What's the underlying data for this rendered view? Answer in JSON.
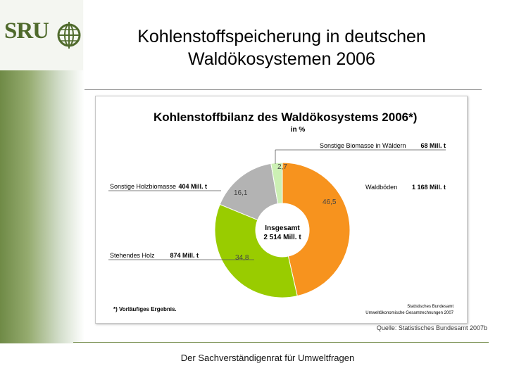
{
  "logo": {
    "text": "SRU"
  },
  "slide": {
    "title_line1": "Kohlenstoffspeicherung in deutschen",
    "title_line2": "Waldökosystemen 2006",
    "source": "Quelle: Statistisches Bundesamt 2007b",
    "footer": "Der Sachverständigenrat für Umweltfragen"
  },
  "colors": {
    "orange": "#f7931e",
    "green": "#99cc00",
    "gray": "#b3b3b3",
    "light_green": "#ccf0b4"
  },
  "chart_data": {
    "type": "pie",
    "title": "Kohlenstoffbilanz des Waldökosystems 2006*)",
    "subtitle": "in %",
    "center_label_line1": "Insgesamt",
    "center_label_line2": "2 514 Mill. t",
    "footnote": "*) Vorläufiges Ergebnis.",
    "credit_line1": "Statistisches Bundesamt",
    "credit_line2": "Umweltökonomische Gesamtrechnungen 2007",
    "slices": [
      {
        "label": "Waldböden",
        "amount": "1 168 Mill. t",
        "value": 46.5,
        "value_label": "46,5",
        "color": "#f7931e"
      },
      {
        "label": "Stehendes Holz",
        "amount": "874 Mill. t",
        "value": 34.8,
        "value_label": "34,8",
        "color": "#99cc00"
      },
      {
        "label": "Sonstige Holzbiomasse",
        "amount": "404 Mill. t",
        "value": 16.1,
        "value_label": "16,1",
        "color": "#b3b3b3"
      },
      {
        "label": "Sonstige Biomasse in Wäldern",
        "amount": "68 Mill. t",
        "value": 2.7,
        "value_label": "2,7",
        "color": "#ccf0b4"
      }
    ]
  }
}
